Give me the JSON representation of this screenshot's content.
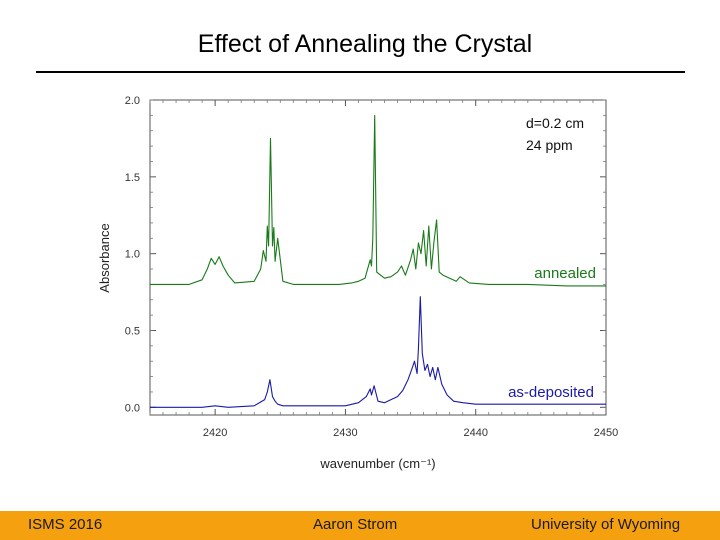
{
  "slide": {
    "title": "Effect of Annealing the Crystal"
  },
  "footer": {
    "left": "ISMS 2016",
    "center": "Aaron Strom",
    "right": "University of Wyoming",
    "color": "#F5A00F"
  },
  "chart_data": {
    "type": "line",
    "xlabel": "wavenumber (cm⁻¹)",
    "ylabel": "Absorbance",
    "xlim": [
      2415,
      2450
    ],
    "ylim": [
      -0.05,
      2.0
    ],
    "xticks": [
      "2420",
      "2430",
      "2440",
      "2450"
    ],
    "xtick_values": [
      2420,
      2430,
      2440,
      2450
    ],
    "yticks": [
      "0.0",
      "0.5",
      "1.0",
      "1.5",
      "2.0"
    ],
    "ytick_values": [
      0.0,
      0.5,
      1.0,
      1.5,
      2.0
    ],
    "annotations": [
      "d=0.2 cm",
      "24 ppm"
    ],
    "series": [
      {
        "name": "annealed",
        "color": "#1a7a1a",
        "x": [
          2415.0,
          2418.0,
          2419.0,
          2419.4,
          2419.7,
          2420.0,
          2420.3,
          2420.6,
          2421.0,
          2421.5,
          2423.0,
          2423.5,
          2423.7,
          2423.9,
          2424.0,
          2424.1,
          2424.25,
          2424.4,
          2424.5,
          2424.6,
          2424.8,
          2425.2,
          2426.0,
          2428.0,
          2429.5,
          2430.5,
          2431.0,
          2431.5,
          2431.9,
          2432.0,
          2432.1,
          2432.25,
          2432.4,
          2433.0,
          2433.5,
          2434.0,
          2434.3,
          2434.6,
          2435.0,
          2435.2,
          2435.4,
          2435.6,
          2435.8,
          2436.0,
          2436.2,
          2436.4,
          2436.6,
          2436.8,
          2437.0,
          2437.2,
          2437.5,
          2438.0,
          2438.5,
          2438.8,
          2439.5,
          2441.0,
          2444.0,
          2447.0,
          2450.0
        ],
        "y": [
          0.8,
          0.8,
          0.83,
          0.9,
          0.97,
          0.93,
          0.98,
          0.92,
          0.86,
          0.81,
          0.82,
          0.9,
          1.02,
          0.95,
          1.18,
          1.05,
          1.75,
          1.05,
          1.17,
          0.95,
          1.1,
          0.82,
          0.8,
          0.8,
          0.8,
          0.81,
          0.82,
          0.84,
          0.96,
          0.92,
          1.1,
          1.9,
          0.88,
          0.84,
          0.85,
          0.88,
          0.92,
          0.86,
          0.96,
          1.03,
          0.9,
          1.07,
          1.0,
          1.15,
          0.92,
          1.18,
          0.9,
          1.08,
          1.22,
          0.88,
          0.86,
          0.84,
          0.82,
          0.85,
          0.81,
          0.8,
          0.8,
          0.79,
          0.79
        ]
      },
      {
        "name": "as-deposited",
        "color": "#1a1aa8",
        "x": [
          2415.0,
          2419.0,
          2420.0,
          2421.0,
          2423.0,
          2423.8,
          2424.0,
          2424.2,
          2424.4,
          2424.6,
          2424.8,
          2425.2,
          2427.0,
          2430.0,
          2431.0,
          2431.6,
          2431.9,
          2432.0,
          2432.2,
          2432.5,
          2433.0,
          2433.5,
          2434.0,
          2434.4,
          2434.8,
          2435.1,
          2435.3,
          2435.5,
          2435.6,
          2435.75,
          2435.9,
          2436.1,
          2436.3,
          2436.5,
          2436.7,
          2436.9,
          2437.1,
          2437.4,
          2437.8,
          2438.3,
          2439.0,
          2440.0,
          2442.0,
          2445.0,
          2450.0
        ],
        "y": [
          0.0,
          0.0,
          0.01,
          0.0,
          0.01,
          0.05,
          0.1,
          0.18,
          0.07,
          0.04,
          0.02,
          0.01,
          0.01,
          0.01,
          0.03,
          0.07,
          0.12,
          0.08,
          0.14,
          0.04,
          0.03,
          0.05,
          0.07,
          0.11,
          0.18,
          0.25,
          0.3,
          0.22,
          0.38,
          0.72,
          0.35,
          0.24,
          0.28,
          0.2,
          0.26,
          0.18,
          0.26,
          0.15,
          0.08,
          0.04,
          0.03,
          0.02,
          0.02,
          0.02,
          0.02
        ]
      }
    ]
  }
}
